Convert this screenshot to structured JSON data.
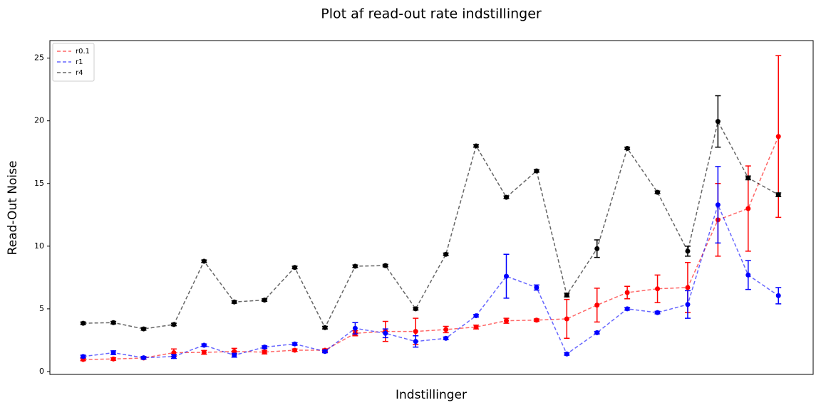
{
  "chart_data": {
    "type": "errorbar-line",
    "title": "Plot af read-out rate indstillinger",
    "xlabel": "Indstillinger",
    "ylabel": "Read-Out Noise",
    "x": [
      0,
      1,
      2,
      3,
      4,
      5,
      6,
      7,
      8,
      9,
      10,
      11,
      12,
      13,
      14,
      15,
      16,
      17,
      18,
      19,
      20,
      21,
      22,
      23
    ],
    "xlim": [
      -1.1,
      24.15
    ],
    "ylim": [
      -0.23,
      26.4
    ],
    "yticks": [
      0,
      5,
      10,
      15,
      20,
      25
    ],
    "legend": "upper left",
    "series": [
      {
        "name": "r0.1",
        "color": "#ff0000",
        "values": [
          0.96,
          1.0,
          1.08,
          1.5,
          1.53,
          1.6,
          1.55,
          1.7,
          1.7,
          3.05,
          3.2,
          3.2,
          3.35,
          3.55,
          4.05,
          4.1,
          4.2,
          5.3,
          6.3,
          6.6,
          6.7,
          12.1,
          13.0,
          18.75
        ],
        "errors": [
          0.1,
          0.1,
          0.1,
          0.3,
          0.15,
          0.25,
          0.15,
          0.1,
          0.1,
          0.2,
          0.8,
          1.05,
          0.25,
          0.15,
          0.2,
          0.1,
          1.55,
          1.35,
          0.5,
          1.1,
          2.0,
          2.9,
          3.4,
          6.45
        ]
      },
      {
        "name": "r1",
        "color": "#0000ff",
        "values": [
          1.2,
          1.5,
          1.1,
          1.2,
          2.1,
          1.3,
          1.95,
          2.2,
          1.6,
          3.45,
          3.05,
          2.4,
          2.65,
          4.45,
          7.6,
          6.7,
          1.4,
          3.1,
          5.0,
          4.7,
          5.35,
          13.3,
          7.7,
          6.05
        ],
        "errors": [
          0.1,
          0.15,
          0.1,
          0.15,
          0.1,
          0.15,
          0.1,
          0.1,
          0.1,
          0.45,
          0.35,
          0.45,
          0.1,
          0.1,
          1.75,
          0.2,
          0.1,
          0.1,
          0.1,
          0.1,
          1.1,
          3.05,
          1.15,
          0.65
        ]
      },
      {
        "name": "r4",
        "color": "#000000",
        "values": [
          3.85,
          3.9,
          3.4,
          3.75,
          8.8,
          5.55,
          5.7,
          8.3,
          3.5,
          8.4,
          8.45,
          5.0,
          9.35,
          18.0,
          13.9,
          16.0,
          6.1,
          9.8,
          17.8,
          14.3,
          9.6,
          19.95,
          15.45,
          14.1
        ],
        "errors": [
          0.1,
          0.1,
          0.1,
          0.1,
          0.1,
          0.1,
          0.1,
          0.1,
          0.1,
          0.1,
          0.1,
          0.1,
          0.1,
          0.1,
          0.1,
          0.1,
          0.15,
          0.7,
          0.1,
          0.1,
          0.4,
          2.05,
          0.15,
          0.15
        ]
      }
    ]
  }
}
